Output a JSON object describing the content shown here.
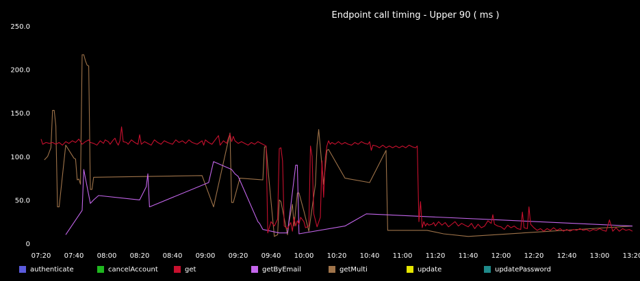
{
  "chart_data": {
    "type": "line",
    "title": "Endpoint call timing - Upper 90 ( ms )",
    "xlabel": "",
    "ylabel": "",
    "ylim": [
      0,
      250
    ],
    "xlim": [
      "07:15",
      "13:20"
    ],
    "yticks": [
      "0",
      "50.0",
      "100.0",
      "150.0",
      "200.0",
      "250.0"
    ],
    "ytick_values": [
      0,
      50,
      100,
      150,
      200,
      250
    ],
    "xticks": [
      "07:20",
      "07:40",
      "08:00",
      "08:20",
      "08:40",
      "09:00",
      "09:20",
      "09:40",
      "10:00",
      "10:20",
      "10:40",
      "11:00",
      "11:20",
      "11:40",
      "12:00",
      "12:20",
      "12:40",
      "13:00",
      "13:20"
    ],
    "grid": false,
    "legend_position": "bottom",
    "series": [
      {
        "name": "authenticate",
        "color": "#5a5adc",
        "points": []
      },
      {
        "name": "cancelAccount",
        "color": "#1fb81f",
        "points": []
      },
      {
        "name": "get",
        "color": "#c8102e",
        "points": [
          [
            "07:20",
            120
          ],
          [
            "07:21",
            114
          ],
          [
            "07:23",
            116
          ],
          [
            "07:25",
            115
          ],
          [
            "07:27",
            116
          ],
          [
            "07:29",
            114
          ],
          [
            "07:31",
            116
          ],
          [
            "07:33",
            113
          ],
          [
            "07:35",
            117
          ],
          [
            "07:37",
            115
          ],
          [
            "07:39",
            118
          ],
          [
            "07:41",
            116
          ],
          [
            "07:43",
            120
          ],
          [
            "07:45",
            114
          ],
          [
            "07:47",
            117
          ],
          [
            "07:49",
            119
          ],
          [
            "07:50",
            116
          ],
          [
            "07:52",
            115
          ],
          [
            "07:54",
            113
          ],
          [
            "07:56",
            118
          ],
          [
            "07:58",
            115
          ],
          [
            "07:59",
            119
          ],
          [
            "08:01",
            117
          ],
          [
            "08:02",
            114
          ],
          [
            "08:04",
            119
          ],
          [
            "08:05",
            121
          ],
          [
            "08:06",
            116
          ],
          [
            "08:07",
            113
          ],
          [
            "08:08",
            118
          ],
          [
            "08:09",
            134
          ],
          [
            "08:10",
            117
          ],
          [
            "08:12",
            116
          ],
          [
            "08:13",
            114
          ],
          [
            "08:15",
            119
          ],
          [
            "08:17",
            116
          ],
          [
            "08:19",
            114
          ],
          [
            "08:20",
            125
          ],
          [
            "08:21",
            114
          ],
          [
            "08:23",
            117
          ],
          [
            "08:25",
            115
          ],
          [
            "08:27",
            113
          ],
          [
            "08:29",
            119
          ],
          [
            "08:31",
            116
          ],
          [
            "08:33",
            114
          ],
          [
            "08:35",
            118
          ],
          [
            "08:37",
            116
          ],
          [
            "08:40",
            114
          ],
          [
            "08:42",
            119
          ],
          [
            "08:44",
            116
          ],
          [
            "08:46",
            118
          ],
          [
            "08:48",
            115
          ],
          [
            "08:50",
            119
          ],
          [
            "08:52",
            116
          ],
          [
            "08:55",
            114
          ],
          [
            "08:58",
            118
          ],
          [
            "08:59",
            113
          ],
          [
            "09:00",
            119
          ],
          [
            "09:02",
            116
          ],
          [
            "09:04",
            114
          ],
          [
            "09:06",
            119
          ],
          [
            "09:08",
            124
          ],
          [
            "09:09",
            113
          ],
          [
            "09:11",
            118
          ],
          [
            "09:13",
            115
          ],
          [
            "09:14",
            121
          ],
          [
            "09:15",
            126
          ],
          [
            "09:16",
            117
          ],
          [
            "09:17",
            123
          ],
          [
            "09:18",
            118
          ],
          [
            "09:20",
            115
          ],
          [
            "09:22",
            117
          ],
          [
            "09:24",
            115
          ],
          [
            "09:26",
            113
          ],
          [
            "09:28",
            116
          ],
          [
            "09:30",
            114
          ],
          [
            "09:32",
            117
          ],
          [
            "09:34",
            115
          ],
          [
            "09:36",
            113
          ],
          [
            "09:37",
            112
          ],
          [
            "09:38",
            12
          ],
          [
            "09:40",
            25
          ],
          [
            "09:42",
            20
          ],
          [
            "09:43",
            24
          ],
          [
            "09:44",
            28
          ],
          [
            "09:45",
            109
          ],
          [
            "09:46",
            110
          ],
          [
            "09:47",
            95
          ],
          [
            "09:48",
            20
          ],
          [
            "09:50",
            17
          ],
          [
            "09:52",
            24
          ],
          [
            "09:53",
            14
          ],
          [
            "09:54",
            30
          ],
          [
            "09:55",
            20
          ],
          [
            "09:56",
            26
          ],
          [
            "09:57",
            22
          ],
          [
            "09:58",
            30
          ],
          [
            "10:00",
            25
          ],
          [
            "10:01",
            18
          ],
          [
            "10:03",
            20
          ],
          [
            "10:04",
            112
          ],
          [
            "10:05",
            100
          ],
          [
            "10:06",
            34
          ],
          [
            "10:08",
            19
          ],
          [
            "10:10",
            30
          ],
          [
            "10:11",
            95
          ],
          [
            "10:12",
            53
          ],
          [
            "10:13",
            98
          ],
          [
            "10:14",
            112
          ],
          [
            "10:15",
            118
          ],
          [
            "10:16",
            114
          ],
          [
            "10:17",
            116
          ],
          [
            "10:19",
            114
          ],
          [
            "10:21",
            117
          ],
          [
            "10:23",
            114
          ],
          [
            "10:25",
            116
          ],
          [
            "10:27",
            114
          ],
          [
            "10:29",
            113
          ],
          [
            "10:31",
            116
          ],
          [
            "10:33",
            114
          ],
          [
            "10:35",
            117
          ],
          [
            "10:37",
            115
          ],
          [
            "10:39",
            114
          ],
          [
            "10:40",
            117
          ],
          [
            "10:41",
            107
          ],
          [
            "10:42",
            113
          ],
          [
            "10:44",
            112
          ],
          [
            "10:46",
            110
          ],
          [
            "10:48",
            113
          ],
          [
            "10:50",
            110
          ],
          [
            "10:52",
            112
          ],
          [
            "10:54",
            110
          ],
          [
            "10:56",
            112
          ],
          [
            "10:58",
            110
          ],
          [
            "11:00",
            112
          ],
          [
            "11:02",
            110
          ],
          [
            "11:04",
            113
          ],
          [
            "11:06",
            111
          ],
          [
            "11:08",
            110
          ],
          [
            "11:09",
            112
          ],
          [
            "11:10",
            25
          ],
          [
            "11:11",
            48
          ],
          [
            "11:12",
            18
          ],
          [
            "11:13",
            25
          ],
          [
            "11:14",
            20
          ],
          [
            "11:15",
            23
          ],
          [
            "11:16",
            21
          ],
          [
            "11:18",
            22
          ],
          [
            "11:19",
            24
          ],
          [
            "11:20",
            20
          ],
          [
            "11:22",
            25
          ],
          [
            "11:24",
            21
          ],
          [
            "11:26",
            24
          ],
          [
            "11:28",
            19
          ],
          [
            "11:30",
            22
          ],
          [
            "11:32",
            25
          ],
          [
            "11:34",
            20
          ],
          [
            "11:36",
            23
          ],
          [
            "11:38",
            21
          ],
          [
            "11:40",
            19
          ],
          [
            "11:42",
            23
          ],
          [
            "11:44",
            17
          ],
          [
            "11:46",
            22
          ],
          [
            "11:48",
            18
          ],
          [
            "11:50",
            20
          ],
          [
            "11:52",
            26
          ],
          [
            "11:54",
            23
          ],
          [
            "11:55",
            33
          ],
          [
            "11:56",
            22
          ],
          [
            "11:58",
            20
          ],
          [
            "12:00",
            19
          ],
          [
            "12:02",
            16
          ],
          [
            "12:04",
            21
          ],
          [
            "12:06",
            18
          ],
          [
            "12:08",
            20
          ],
          [
            "12:10",
            17
          ],
          [
            "12:12",
            16
          ],
          [
            "12:13",
            36
          ],
          [
            "12:14",
            18
          ],
          [
            "12:16",
            17
          ],
          [
            "12:17",
            42
          ],
          [
            "12:18",
            22
          ],
          [
            "12:20",
            18
          ],
          [
            "12:22",
            15
          ],
          [
            "12:24",
            17
          ],
          [
            "12:26",
            14
          ],
          [
            "12:28",
            17
          ],
          [
            "12:30",
            15
          ],
          [
            "12:32",
            18
          ],
          [
            "12:34",
            15
          ],
          [
            "12:36",
            17
          ],
          [
            "12:38",
            14
          ],
          [
            "12:40",
            16
          ],
          [
            "12:42",
            14
          ],
          [
            "12:44",
            16
          ],
          [
            "12:46",
            15
          ],
          [
            "12:48",
            17
          ],
          [
            "12:50",
            15
          ],
          [
            "12:52",
            16
          ],
          [
            "12:54",
            14
          ],
          [
            "12:56",
            16
          ],
          [
            "12:58",
            15
          ],
          [
            "13:00",
            17
          ],
          [
            "13:02",
            15
          ],
          [
            "13:04",
            14
          ],
          [
            "13:06",
            27
          ],
          [
            "13:08",
            14
          ],
          [
            "13:10",
            18
          ],
          [
            "13:12",
            14
          ],
          [
            "13:14",
            17
          ],
          [
            "13:16",
            15
          ],
          [
            "13:18",
            16
          ],
          [
            "13:20",
            14
          ]
        ]
      },
      {
        "name": "getByEmail",
        "color": "#c466ec",
        "points": [
          [
            "07:35",
            10
          ],
          [
            "07:45",
            38
          ],
          [
            "07:46",
            85
          ],
          [
            "07:47",
            75
          ],
          [
            "07:50",
            46
          ],
          [
            "07:52",
            50
          ],
          [
            "07:55",
            55
          ],
          [
            "08:20",
            50
          ],
          [
            "08:24",
            65
          ],
          [
            "08:25",
            80
          ],
          [
            "08:26",
            42
          ],
          [
            "09:02",
            70
          ],
          [
            "09:05",
            94
          ],
          [
            "09:16",
            85
          ],
          [
            "09:18",
            80
          ],
          [
            "09:20",
            77
          ],
          [
            "09:32",
            25
          ],
          [
            "09:33",
            23
          ],
          [
            "09:35",
            16
          ],
          [
            "09:45",
            12
          ],
          [
            "09:50",
            12
          ],
          [
            "09:55",
            90
          ],
          [
            "09:56",
            90
          ],
          [
            "09:57",
            11
          ],
          [
            "10:25",
            20
          ],
          [
            "10:38",
            34
          ],
          [
            "13:20",
            20
          ]
        ]
      },
      {
        "name": "getMulti",
        "color": "#a0744a",
        "points": [
          [
            "07:22",
            96
          ],
          [
            "07:24",
            100
          ],
          [
            "07:25",
            105
          ],
          [
            "07:26",
            110
          ],
          [
            "07:27",
            153
          ],
          [
            "07:28",
            153
          ],
          [
            "07:29",
            135
          ],
          [
            "07:30",
            42
          ],
          [
            "07:31",
            42
          ],
          [
            "07:35",
            113
          ],
          [
            "07:36",
            110
          ],
          [
            "07:40",
            98
          ],
          [
            "07:41",
            97
          ],
          [
            "07:42",
            73
          ],
          [
            "07:43",
            74
          ],
          [
            "07:44",
            68
          ],
          [
            "07:45",
            217
          ],
          [
            "07:46",
            217
          ],
          [
            "07:47",
            210
          ],
          [
            "07:48",
            205
          ],
          [
            "07:49",
            204
          ],
          [
            "07:50",
            62
          ],
          [
            "07:51",
            62
          ],
          [
            "07:52",
            76
          ],
          [
            "08:58",
            78
          ],
          [
            "09:05",
            42
          ],
          [
            "09:15",
            127
          ],
          [
            "09:16",
            47
          ],
          [
            "09:17",
            47
          ],
          [
            "09:21",
            75
          ],
          [
            "09:35",
            73
          ],
          [
            "09:36",
            111
          ],
          [
            "09:37",
            111
          ],
          [
            "09:38",
            88
          ],
          [
            "09:42",
            8
          ],
          [
            "09:44",
            10
          ],
          [
            "09:45",
            50
          ],
          [
            "09:46",
            48
          ],
          [
            "09:50",
            10
          ],
          [
            "09:51",
            25
          ],
          [
            "09:53",
            45
          ],
          [
            "09:54",
            20
          ],
          [
            "09:56",
            58
          ],
          [
            "09:57",
            58
          ],
          [
            "10:00",
            37
          ],
          [
            "10:03",
            14
          ],
          [
            "10:07",
            68
          ],
          [
            "10:08",
            113
          ],
          [
            "10:09",
            131
          ],
          [
            "10:12",
            68
          ],
          [
            "10:14",
            107
          ],
          [
            "10:15",
            108
          ],
          [
            "10:25",
            75
          ],
          [
            "10:40",
            70
          ],
          [
            "10:50",
            107
          ],
          [
            "10:51",
            15
          ],
          [
            "11:15",
            15
          ],
          [
            "11:25",
            11
          ],
          [
            "11:40",
            8
          ],
          [
            "13:20",
            20
          ]
        ]
      },
      {
        "name": "update",
        "color": "#e6e600",
        "points": []
      },
      {
        "name": "updatePassword",
        "color": "#1f8a8a",
        "points": []
      }
    ]
  }
}
